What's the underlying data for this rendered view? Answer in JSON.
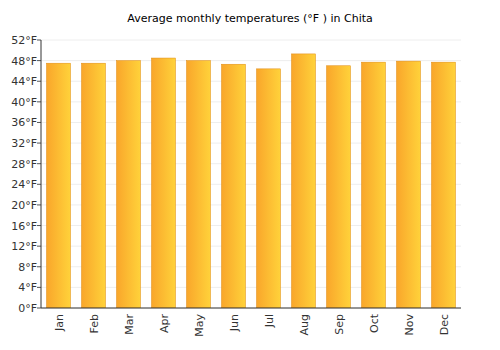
{
  "chart_data": {
    "type": "bar",
    "title": "Average monthly temperatures (°F ) in Chita",
    "categories": [
      "Jan",
      "Feb",
      "Mar",
      "Apr",
      "May",
      "Jun",
      "Jul",
      "Aug",
      "Sep",
      "Oct",
      "Nov",
      "Dec"
    ],
    "values": [
      47.5,
      47.5,
      48,
      48.5,
      48,
      47.3,
      46.4,
      49.3,
      47,
      47.7,
      47.9,
      47.7
    ],
    "color": "#f9a62b",
    "ylim": [
      0,
      52
    ],
    "yticks": [
      {
        "value": 0,
        "label": "0°F"
      },
      {
        "value": 4,
        "label": "4°F"
      },
      {
        "value": 8,
        "label": "8°F"
      },
      {
        "value": 12,
        "label": "12°F"
      },
      {
        "value": 16,
        "label": "16°F"
      },
      {
        "value": 20,
        "label": "20°F"
      },
      {
        "value": 24,
        "label": "24°F"
      },
      {
        "value": 28,
        "label": "28°F"
      },
      {
        "value": 32,
        "label": "32°F"
      },
      {
        "value": 36,
        "label": "36°F"
      },
      {
        "value": 40,
        "label": "40°F"
      },
      {
        "value": 44,
        "label": "44°F"
      },
      {
        "value": 48,
        "label": "48°F"
      },
      {
        "value": 52,
        "label": "52°F"
      }
    ],
    "grid": true
  }
}
